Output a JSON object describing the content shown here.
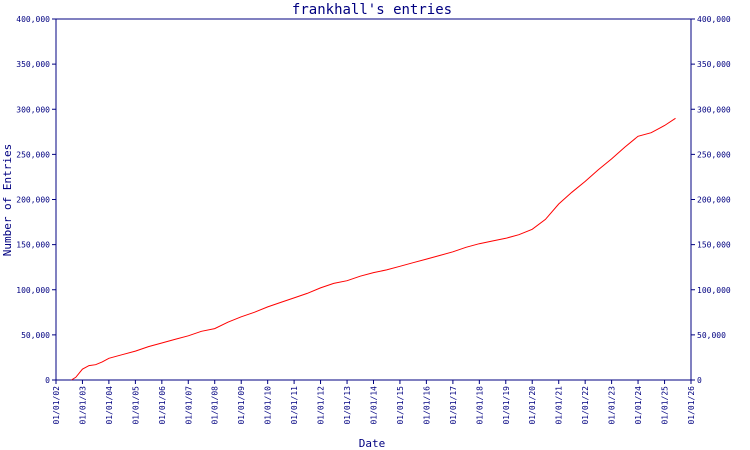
{
  "chart_data": {
    "type": "line",
    "title": "frankhall's entries",
    "xlabel": "Date",
    "ylabel": "Number of Entries",
    "x_axis_type": "date",
    "xlim": [
      "2002-01-01",
      "2026-01-01"
    ],
    "ylim": [
      0,
      400000
    ],
    "grid": false,
    "legend": "none",
    "y_ticks": [
      0,
      50000,
      100000,
      150000,
      200000,
      250000,
      300000,
      350000,
      400000
    ],
    "y_tick_labels": [
      "0",
      "50,000",
      "100,000",
      "150,000",
      "200,000",
      "250,000",
      "300,000",
      "350,000",
      "400,000"
    ],
    "x_ticks": [
      "2002-01-01",
      "2003-01-01",
      "2004-01-01",
      "2005-01-01",
      "2006-01-01",
      "2007-01-01",
      "2008-01-01",
      "2009-01-01",
      "2010-01-01",
      "2011-01-01",
      "2012-01-01",
      "2013-01-01",
      "2014-01-01",
      "2015-01-01",
      "2016-01-01",
      "2017-01-01",
      "2018-01-01",
      "2019-01-01",
      "2020-01-01",
      "2021-01-01",
      "2022-01-01",
      "2023-01-01",
      "2024-01-01",
      "2025-01-01",
      "2026-01-01"
    ],
    "x_tick_labels": [
      "01/01/02",
      "01/01/03",
      "01/01/04",
      "01/01/05",
      "01/01/06",
      "01/01/07",
      "01/01/08",
      "01/01/09",
      "01/01/10",
      "01/01/11",
      "01/01/12",
      "01/01/13",
      "01/01/14",
      "01/01/15",
      "01/01/16",
      "01/01/17",
      "01/01/18",
      "01/01/19",
      "01/01/20",
      "01/01/21",
      "01/01/22",
      "01/01/23",
      "01/01/24",
      "01/01/25",
      "01/01/26"
    ],
    "colors": {
      "axis": "#000080",
      "series": "#ff0000",
      "background": "#ffffff"
    },
    "series": [
      {
        "x": [
          "2002-08-01",
          "2002-10-01",
          "2003-01-01",
          "2003-04-01",
          "2003-07-01",
          "2003-10-01",
          "2004-01-01",
          "2004-07-01",
          "2005-01-01",
          "2005-07-01",
          "2006-01-01",
          "2006-07-01",
          "2007-01-01",
          "2007-07-01",
          "2008-01-01",
          "2008-07-01",
          "2009-01-01",
          "2009-07-01",
          "2010-01-01",
          "2010-07-01",
          "2011-01-01",
          "2011-07-01",
          "2012-01-01",
          "2012-07-01",
          "2013-01-01",
          "2013-07-01",
          "2014-01-01",
          "2014-07-01",
          "2015-01-01",
          "2015-07-01",
          "2016-01-01",
          "2016-07-01",
          "2017-01-01",
          "2017-07-01",
          "2018-01-01",
          "2018-07-01",
          "2019-01-01",
          "2019-07-01",
          "2020-01-01",
          "2020-07-01",
          "2021-01-01",
          "2021-07-01",
          "2022-01-01",
          "2022-07-01",
          "2023-01-01",
          "2023-07-01",
          "2024-01-01",
          "2024-07-01",
          "2025-01-01",
          "2025-06-01"
        ],
        "y": [
          0,
          3000,
          12000,
          16000,
          17000,
          20000,
          24000,
          28000,
          32000,
          37000,
          41000,
          45000,
          49000,
          54000,
          57000,
          64000,
          70000,
          75000,
          81000,
          86000,
          91000,
          96000,
          102000,
          107000,
          110000,
          115000,
          119000,
          122000,
          126000,
          130000,
          134000,
          138000,
          142000,
          147000,
          151000,
          154000,
          157000,
          161000,
          167000,
          178000,
          195000,
          208000,
          220000,
          233000,
          245000,
          258000,
          270000,
          274000,
          282000,
          290000
        ]
      }
    ]
  }
}
